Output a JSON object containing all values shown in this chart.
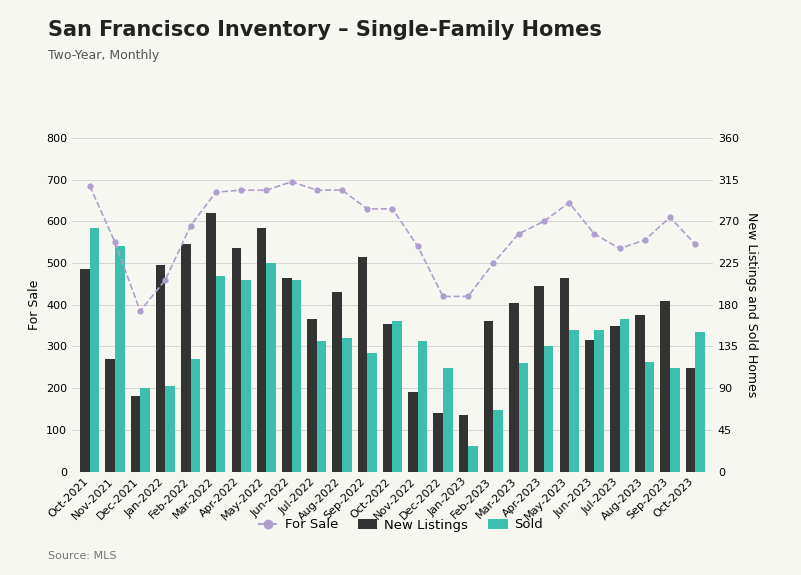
{
  "title": "San Francisco Inventory – Single-Family Homes",
  "subtitle": "Two-Year, Monthly",
  "source": "Source: MLS",
  "ylabel_left": "For Sale",
  "ylabel_right": "New Listings and Sold Homes",
  "categories": [
    "Oct-2021",
    "Nov-2021",
    "Dec-2021",
    "Jan-2022",
    "Feb-2022",
    "Mar-2022",
    "Apr-2022",
    "May-2022",
    "Jun-2022",
    "Jul-2022",
    "Aug-2022",
    "Sep-2022",
    "Oct-2022",
    "Nov-2022",
    "Dec-2022",
    "Jan-2023",
    "Feb-2023",
    "Mar-2023",
    "Apr-2023",
    "May-2023",
    "Jun-2023",
    "Jul-2023",
    "Aug-2023",
    "Sep-2023",
    "Oct-2023"
  ],
  "for_sale": [
    685,
    550,
    385,
    460,
    590,
    670,
    675,
    675,
    695,
    675,
    675,
    630,
    630,
    540,
    420,
    420,
    500,
    570,
    600,
    645,
    570,
    535,
    555,
    610,
    545
  ],
  "new_listings": [
    485,
    270,
    180,
    495,
    545,
    620,
    535,
    585,
    465,
    365,
    430,
    515,
    355,
    190,
    140,
    135,
    360,
    405,
    445,
    465,
    315,
    350,
    375,
    410,
    248
  ],
  "sold": [
    585,
    540,
    200,
    205,
    270,
    470,
    460,
    500,
    460,
    313,
    320,
    285,
    360,
    313,
    248,
    60,
    148,
    260,
    300,
    340,
    340,
    365,
    263,
    248,
    335
  ],
  "bar_color_new": "#333333",
  "bar_color_sold": "#3dbfad",
  "line_color": "#b09fcc",
  "bg_color": "#f7f7f2",
  "ylim_left": [
    0,
    800
  ],
  "ylim_right": [
    0,
    360
  ],
  "yticks_left": [
    0,
    100,
    200,
    300,
    400,
    500,
    600,
    700,
    800
  ],
  "yticks_right": [
    0,
    45,
    90,
    135,
    180,
    225,
    270,
    315,
    360
  ],
  "title_fontsize": 15,
  "subtitle_fontsize": 9,
  "source_fontsize": 8,
  "tick_fontsize": 8,
  "axis_label_fontsize": 9,
  "legend_labels": [
    "For Sale",
    "New Listings",
    "Sold"
  ],
  "legend_colors": [
    "#b09fcc",
    "#333333",
    "#3dbfad"
  ]
}
